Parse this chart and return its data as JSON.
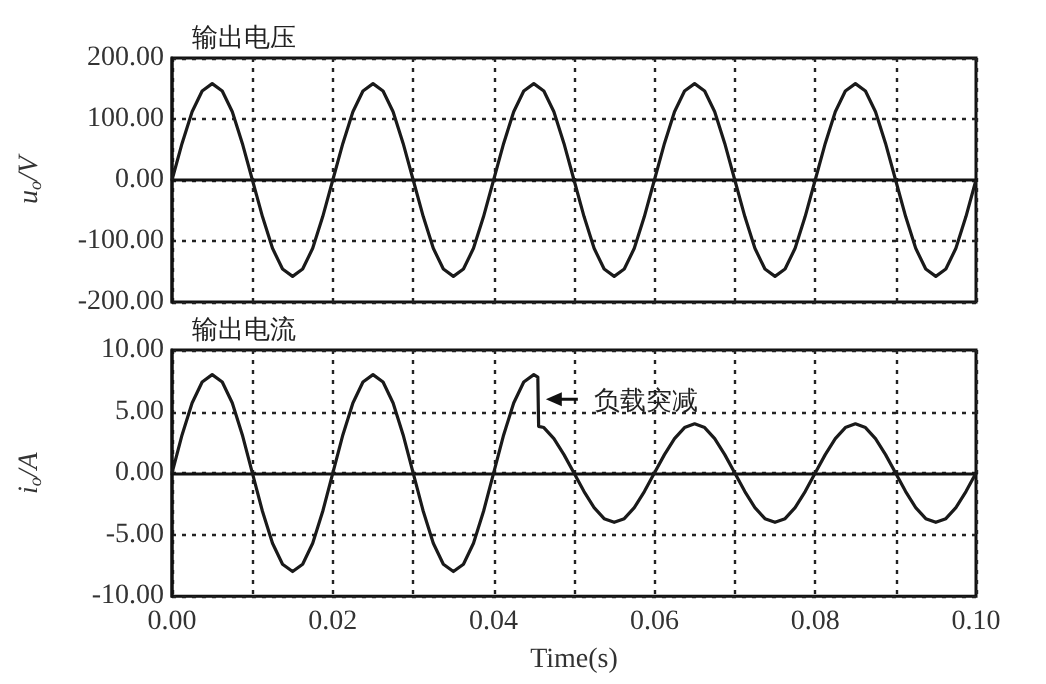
{
  "chart_data": [
    {
      "type": "line",
      "title": "输出电压",
      "ylabel": "u$_{o}$/V",
      "tick_labels": "y",
      "grid": true,
      "marker": "none",
      "line_style": "solid",
      "xlim": [
        0,
        0.1
      ],
      "xticks": [
        {
          "value": 0,
          "label": null
        },
        {
          "value": 0.01,
          "label": null
        },
        {
          "value": 0.02,
          "label": null
        },
        {
          "value": 0.03,
          "label": null
        },
        {
          "value": 0.04,
          "label": null
        },
        {
          "value": 0.05,
          "label": null
        },
        {
          "value": 0.06,
          "label": null
        },
        {
          "value": 0.07,
          "label": null
        },
        {
          "value": 0.08,
          "label": null
        },
        {
          "value": 0.09,
          "label": null
        },
        {
          "value": 0.1,
          "label": null
        }
      ],
      "ylim": [
        -200,
        200
      ],
      "yticks": [
        {
          "value": -200,
          "label": "-200.00"
        },
        {
          "value": -100,
          "label": "-100.00"
        },
        {
          "value": 0,
          "label": "0.00"
        },
        {
          "value": 100,
          "label": "100.00"
        },
        {
          "value": 200,
          "label": "200.00"
        }
      ],
      "series": [
        {
          "color": "#1a1a1a",
          "x": [
            0,
            0.00125,
            0.0025,
            0.00375,
            0.005,
            0.00625,
            0.0075,
            0.00875,
            0.01,
            0.01125,
            0.0125,
            0.01375,
            0.015,
            0.01625,
            0.0175,
            0.01875,
            0.02,
            0.02125,
            0.0225,
            0.02375,
            0.025,
            0.02625,
            0.0275,
            0.02875,
            0.03,
            0.03125,
            0.0325,
            0.03375,
            0.035,
            0.03625,
            0.0375,
            0.03875,
            0.04,
            0.04125,
            0.0425,
            0.04375,
            0.045,
            0.04625,
            0.0475,
            0.04875,
            0.05,
            0.05125,
            0.0525,
            0.05375,
            0.055,
            0.05625,
            0.0575,
            0.05875,
            0.06,
            0.06125,
            0.0625,
            0.06375,
            0.065,
            0.06625,
            0.0675,
            0.06875,
            0.07,
            0.07125,
            0.0725,
            0.07375,
            0.075,
            0.07625,
            0.0775,
            0.07875,
            0.08,
            0.08125,
            0.0825,
            0.08375,
            0.085,
            0.08625,
            0.0875,
            0.08875,
            0.09,
            0.09125,
            0.0925,
            0.09375,
            0.095,
            0.09625,
            0.0975,
            0.09875,
            0.1
          ],
          "values": [
            0,
            60,
            112,
            146,
            158,
            146,
            112,
            60,
            0,
            -60,
            -112,
            -146,
            -158,
            -146,
            -112,
            -60,
            0,
            60,
            112,
            146,
            158,
            146,
            112,
            60,
            0,
            -60,
            -112,
            -146,
            -158,
            -146,
            -112,
            -60,
            0,
            60,
            112,
            146,
            158,
            146,
            112,
            60,
            0,
            -60,
            -112,
            -146,
            -158,
            -146,
            -112,
            -60,
            0,
            60,
            112,
            146,
            158,
            146,
            112,
            60,
            0,
            -60,
            -112,
            -146,
            -158,
            -146,
            -112,
            -60,
            0,
            60,
            112,
            146,
            158,
            146,
            112,
            60,
            0,
            -60,
            -112,
            -146,
            -158,
            -146,
            -112,
            -60,
            0
          ]
        }
      ]
    },
    {
      "type": "line",
      "title": "输出电流",
      "ylabel": "i$_{o}$/A",
      "xlabel": "Time(s)",
      "grid": true,
      "marker": "none",
      "line_style": "solid",
      "annotations": [
        {
          "text": "负载突减",
          "x": 0.046,
          "y": 6
        }
      ],
      "xlim": [
        0,
        0.1
      ],
      "xticks": [
        {
          "value": 0,
          "label": "0.00"
        },
        {
          "value": 0.01,
          "label": null
        },
        {
          "value": 0.02,
          "label": "0.02"
        },
        {
          "value": 0.03,
          "label": null
        },
        {
          "value": 0.04,
          "label": "0.04"
        },
        {
          "value": 0.05,
          "label": null
        },
        {
          "value": 0.06,
          "label": "0.06"
        },
        {
          "value": 0.07,
          "label": null
        },
        {
          "value": 0.08,
          "label": "0.08"
        },
        {
          "value": 0.09,
          "label": null
        },
        {
          "value": 0.1,
          "label": "0.10"
        }
      ],
      "ylim": [
        -10,
        10
      ],
      "yticks": [
        {
          "value": -10,
          "label": "-10.00"
        },
        {
          "value": -5,
          "label": "-5.00"
        },
        {
          "value": 0,
          "label": "0.00"
        },
        {
          "value": 5,
          "label": "5.00"
        },
        {
          "value": 10,
          "label": "10.00"
        }
      ],
      "series": [
        {
          "color": "#1a1a1a",
          "x": [
            0,
            0.00125,
            0.0025,
            0.00375,
            0.005,
            0.00625,
            0.0075,
            0.00875,
            0.01,
            0.01125,
            0.0125,
            0.01375,
            0.015,
            0.01625,
            0.0175,
            0.01875,
            0.02,
            0.02125,
            0.0225,
            0.02375,
            0.025,
            0.02625,
            0.0275,
            0.02875,
            0.03,
            0.03125,
            0.0325,
            0.03375,
            0.035,
            0.03625,
            0.0375,
            0.03875,
            0.04,
            0.04125,
            0.0425,
            0.04375,
            0.045,
            0.0455,
            0.0456,
            0.04625,
            0.0475,
            0.04875,
            0.05,
            0.05125,
            0.0525,
            0.05375,
            0.055,
            0.05625,
            0.0575,
            0.05875,
            0.06,
            0.06125,
            0.0625,
            0.06375,
            0.065,
            0.06625,
            0.0675,
            0.06875,
            0.07,
            0.07125,
            0.0725,
            0.07375,
            0.075,
            0.07625,
            0.0775,
            0.07875,
            0.08,
            0.08125,
            0.0825,
            0.08375,
            0.085,
            0.08625,
            0.0875,
            0.08875,
            0.09,
            0.09125,
            0.0925,
            0.09375,
            0.095,
            0.09625,
            0.0975,
            0.09875,
            0.1
          ],
          "values": [
            0,
            3.1,
            5.7,
            7.4,
            8,
            7.4,
            5.7,
            3.1,
            0,
            -3.1,
            -5.7,
            -7.4,
            -8,
            -7.4,
            -5.7,
            -3.1,
            0,
            3.1,
            5.7,
            7.4,
            8,
            7.4,
            5.7,
            3.1,
            0,
            -3.1,
            -5.7,
            -7.4,
            -8,
            -7.4,
            -5.7,
            -3.1,
            0,
            3.1,
            5.7,
            7.4,
            8,
            7.8,
            3.8,
            3.7,
            2.8,
            1.5,
            0,
            -1.5,
            -2.8,
            -3.7,
            -4,
            -3.7,
            -2.8,
            -1.5,
            0,
            1.5,
            2.8,
            3.7,
            4,
            3.7,
            2.8,
            1.5,
            0,
            -1.5,
            -2.8,
            -3.7,
            -4,
            -3.7,
            -2.8,
            -1.5,
            0,
            1.5,
            2.8,
            3.7,
            4,
            3.7,
            2.8,
            1.5,
            0,
            -1.5,
            -2.8,
            -3.7,
            -4,
            -3.7,
            -2.8,
            -1.5,
            0
          ]
        }
      ]
    }
  ]
}
